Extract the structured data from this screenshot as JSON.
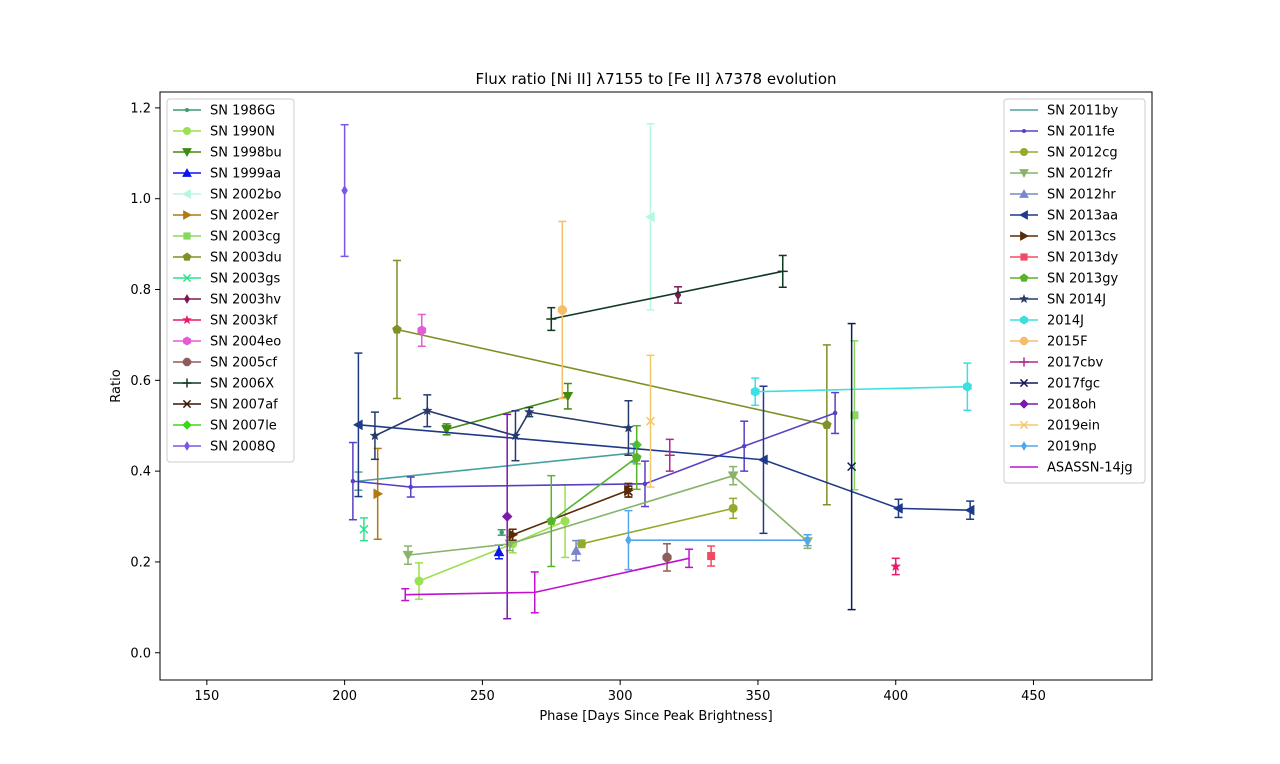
{
  "chart_data": {
    "type": "scatter",
    "title": "Flux ratio [Ni II] λ7155 to [Fe II] λ7378 evolution",
    "xlabel": "Phase [Days Since Peak Brightness]",
    "ylabel": "Ratio",
    "xlim": [
      133,
      493
    ],
    "ylim": [
      -0.06,
      1.235
    ],
    "xticks": [
      150,
      200,
      250,
      300,
      350,
      400,
      450
    ],
    "yticks": [
      0.0,
      0.2,
      0.4,
      0.6,
      0.8,
      1.0,
      1.2
    ],
    "grid": false,
    "legends": [
      "upper-left",
      "upper-right"
    ],
    "series": [
      {
        "name": "SN 1986G",
        "color": "#3a9a6e",
        "marker": "dot",
        "legend": 0,
        "points": [
          [
            257,
            0.265,
            0.006
          ]
        ]
      },
      {
        "name": "SN 1990N",
        "color": "#9be051",
        "marker": "circle",
        "legend": 0,
        "points": [
          [
            227,
            0.158,
            0.04
          ],
          [
            261,
            0.24,
            0.02
          ],
          [
            280,
            0.29,
            0.08
          ]
        ]
      },
      {
        "name": "SN 1998bu",
        "color": "#3f8a10",
        "marker": "tri_down",
        "legend": 0,
        "points": [
          [
            237,
            0.492,
            0.012
          ],
          [
            281,
            0.565,
            0.028
          ]
        ]
      },
      {
        "name": "SN 1999aa",
        "color": "#0a14f0",
        "marker": "tri_up",
        "legend": 0,
        "points": [
          [
            256,
            0.222,
            0.015
          ]
        ]
      },
      {
        "name": "SN 2002bo",
        "color": "#b7f7df",
        "marker": "tri_left",
        "legend": 0,
        "points": [
          [
            311,
            0.96,
            0.205
          ]
        ]
      },
      {
        "name": "SN 2002er",
        "color": "#b07a12",
        "marker": "tri_right",
        "legend": 0,
        "points": [
          [
            212,
            0.35,
            0.1
          ]
        ]
      },
      {
        "name": "SN 2003cg",
        "color": "#88d860",
        "marker": "square",
        "legend": 0,
        "points": [
          [
            385,
            0.523,
            0.164
          ]
        ]
      },
      {
        "name": "SN 2003du",
        "color": "#7e9027",
        "marker": "pentagon",
        "legend": 0,
        "points": [
          [
            219,
            0.712,
            0.152
          ],
          [
            375,
            0.502,
            0.176
          ]
        ]
      },
      {
        "name": "SN 2003gs",
        "color": "#2ee28b",
        "marker": "x",
        "legend": 0,
        "points": [
          [
            207,
            0.272,
            0.025
          ]
        ]
      },
      {
        "name": "SN 2003hv",
        "color": "#7a1a52",
        "marker": "thin_diamond",
        "legend": 0,
        "points": [
          [
            321,
            0.788,
            0.018
          ]
        ]
      },
      {
        "name": "SN 2003kf",
        "color": "#e81a6c",
        "marker": "star",
        "legend": 0,
        "points": [
          [
            400,
            0.19,
            0.018
          ]
        ]
      },
      {
        "name": "SN 2004eo",
        "color": "#e45bd5",
        "marker": "hexagon",
        "legend": 0,
        "points": [
          [
            228,
            0.71,
            0.035
          ]
        ]
      },
      {
        "name": "SN 2005cf",
        "color": "#8f5c5c",
        "marker": "octagon",
        "legend": 0,
        "points": [
          [
            317,
            0.21,
            0.03
          ]
        ]
      },
      {
        "name": "SN 2006X",
        "color": "#0f3a22",
        "marker": "plus",
        "legend": 0,
        "points": [
          [
            275,
            0.735,
            0.025
          ],
          [
            359,
            0.84,
            0.035
          ]
        ]
      },
      {
        "name": "SN 2007af",
        "color": "#3a1406",
        "marker": "x",
        "legend": 0,
        "points": [
          [
            303,
            0.355,
            0.012
          ]
        ]
      },
      {
        "name": "SN 2007le",
        "color": "#3fd61a",
        "marker": "diamond",
        "legend": 0,
        "points": [
          [
            306,
            0.458,
            0.042
          ]
        ]
      },
      {
        "name": "SN 2008Q",
        "color": "#7b57e6",
        "marker": "thin_diamond",
        "legend": 0,
        "points": [
          [
            200,
            1.018,
            0.145
          ]
        ]
      },
      {
        "name": "SN 2011by",
        "color": "#4aa0a0",
        "marker": "line",
        "legend": 1,
        "points": [
          [
            205,
            0.378,
            0.02
          ],
          [
            305,
            0.44,
            0.02
          ]
        ]
      },
      {
        "name": "SN 2011fe",
        "color": "#5840c6",
        "marker": "dot",
        "legend": 1,
        "points": [
          [
            203,
            0.378,
            0.085
          ],
          [
            224,
            0.365,
            0.022
          ],
          [
            309,
            0.372,
            0.05
          ],
          [
            345,
            0.455,
            0.055
          ],
          [
            378,
            0.528,
            0.045
          ]
        ]
      },
      {
        "name": "SN 2012cg",
        "color": "#93ab2b",
        "marker": "circle",
        "legend": 1,
        "points": [
          [
            286,
            0.24,
            0.008
          ],
          [
            341,
            0.318,
            0.022
          ]
        ]
      },
      {
        "name": "SN 2012fr",
        "color": "#87b46a",
        "marker": "tri_down",
        "legend": 1,
        "points": [
          [
            223,
            0.215,
            0.02
          ],
          [
            260,
            0.24,
            0.015
          ],
          [
            341,
            0.39,
            0.02
          ],
          [
            368,
            0.245,
            0.015
          ]
        ]
      },
      {
        "name": "SN 2012hr",
        "color": "#7a86cc",
        "marker": "tri_up",
        "legend": 1,
        "points": [
          [
            284,
            0.225,
            0.022
          ]
        ]
      },
      {
        "name": "SN 2013aa",
        "color": "#203a8a",
        "marker": "tri_left",
        "legend": 1,
        "points": [
          [
            205,
            0.502,
            0.158
          ],
          [
            352,
            0.425,
            0.162
          ],
          [
            401,
            0.318,
            0.02
          ],
          [
            427,
            0.314,
            0.02
          ]
        ]
      },
      {
        "name": "SN 2013cs",
        "color": "#5c2a04",
        "marker": "tri_right",
        "legend": 1,
        "points": [
          [
            261,
            0.26,
            0.012
          ],
          [
            303,
            0.358,
            0.015
          ]
        ]
      },
      {
        "name": "SN 2013dy",
        "color": "#f24a62",
        "marker": "square",
        "legend": 1,
        "points": [
          [
            333,
            0.213,
            0.022
          ]
        ]
      },
      {
        "name": "SN 2013gy",
        "color": "#58b42a",
        "marker": "pentagon",
        "legend": 1,
        "points": [
          [
            275,
            0.29,
            0.1
          ],
          [
            306,
            0.43,
            0.07
          ]
        ]
      },
      {
        "name": "SN 2014J",
        "color": "#283a6c",
        "marker": "star",
        "legend": 1,
        "points": [
          [
            211,
            0.478,
            0.052
          ],
          [
            230,
            0.533,
            0.035
          ],
          [
            262,
            0.478,
            0.055
          ],
          [
            267,
            0.53,
            0.01
          ],
          [
            303,
            0.495,
            0.06
          ]
        ]
      },
      {
        "name": "2014J",
        "color": "#3ddfe0",
        "marker": "hexagon",
        "legend": 1,
        "points": [
          [
            349,
            0.575,
            0.03
          ],
          [
            426,
            0.586,
            0.052
          ]
        ]
      },
      {
        "name": "2015F",
        "color": "#f5bf6a",
        "marker": "octagon",
        "legend": 1,
        "points": [
          [
            279,
            0.755,
            0.195
          ]
        ]
      },
      {
        "name": "2017cbv",
        "color": "#b0288a",
        "marker": "plus",
        "legend": 1,
        "points": [
          [
            318,
            0.435,
            0.035
          ]
        ]
      },
      {
        "name": "2017fgc",
        "color": "#0e1a5e",
        "marker": "x",
        "legend": 1,
        "points": [
          [
            384,
            0.41,
            0.315
          ]
        ]
      },
      {
        "name": "2018oh",
        "color": "#7b1aa8",
        "marker": "diamond",
        "legend": 1,
        "points": [
          [
            259,
            0.3,
            0.225
          ]
        ]
      },
      {
        "name": "2019ein",
        "color": "#f2c868",
        "marker": "x",
        "legend": 1,
        "points": [
          [
            311,
            0.51,
            0.145
          ]
        ]
      },
      {
        "name": "2019np",
        "color": "#52a8ee",
        "marker": "thin_diamond",
        "legend": 1,
        "points": [
          [
            303,
            0.248,
            0.065
          ],
          [
            368,
            0.248,
            0.012
          ]
        ]
      },
      {
        "name": "ASASSN-14jg",
        "color": "#c010d0",
        "marker": "line",
        "legend": 1,
        "points": [
          [
            222,
            0.128,
            0.013
          ],
          [
            269,
            0.133,
            0.045
          ],
          [
            325,
            0.208,
            0.02
          ]
        ]
      }
    ]
  }
}
